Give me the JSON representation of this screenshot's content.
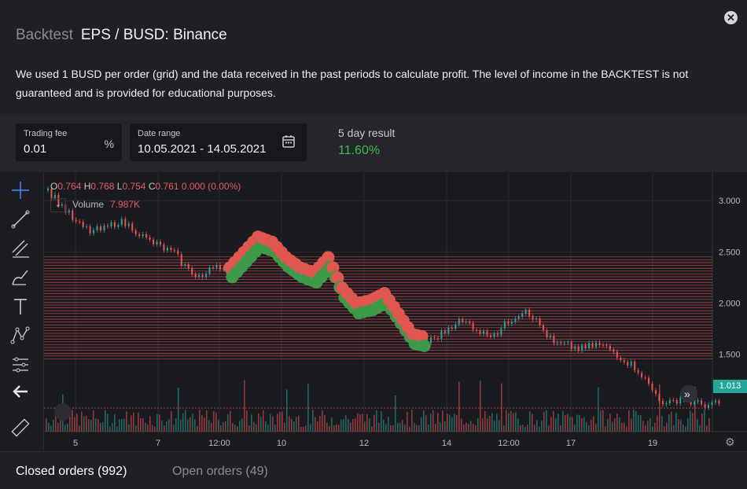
{
  "header": {
    "prefix": "Backtest",
    "title": "EPS / BUSD: Binance",
    "description": "We used 1 BUSD per order (grid) and the data received in the past periods to calculate profit. The level of income in the BACKTEST is not guaranteed and is provided for educational purposes.",
    "close_icon": "close-icon"
  },
  "settings": {
    "trading_fee": {
      "label": "Trading fee",
      "value": "0.01",
      "unit": "%"
    },
    "date_range": {
      "label": "Date range",
      "value": "10.05.2021 - 14.05.2021",
      "icon": "calendar-icon"
    },
    "result": {
      "label": "5 day result",
      "value": "11.60%"
    }
  },
  "chart": {
    "ohlc": {
      "o_key": "O",
      "o": "0.764",
      "h_key": "H",
      "h": "0.768",
      "l_key": "L",
      "l": "0.754",
      "c_key": "C",
      "c": "0.761",
      "change": "0.000 (0.00%)"
    },
    "volume_label": "Volume",
    "volume_value": "7.987K",
    "last_price": "1.013",
    "colors": {
      "up": "#26a69a",
      "down": "#ef5350",
      "buy": "#3d9a4b",
      "sell": "#e0574f"
    }
  },
  "chart_data": {
    "type": "line",
    "x_ticks": [
      "5",
      "7",
      "12:00",
      "10",
      "12",
      "14",
      "12:00",
      "17",
      "19"
    ],
    "y_ticks": [
      "3.000",
      "2.500",
      "2.000",
      "1.500"
    ],
    "ylim": [
      0.9,
      3.2
    ],
    "grid": true,
    "price_points": [
      3.1,
      2.95,
      2.78,
      2.7,
      2.72,
      2.8,
      2.74,
      2.62,
      2.55,
      2.48,
      2.32,
      2.25,
      2.38,
      2.3,
      2.45,
      2.6,
      2.55,
      2.4,
      2.3,
      2.25,
      2.4,
      2.1,
      1.95,
      1.98,
      2.05,
      1.85,
      1.65,
      1.62,
      1.7,
      1.82,
      1.8,
      1.7,
      1.72,
      1.85,
      1.95,
      1.78,
      1.6,
      1.58,
      1.55,
      1.6,
      1.55,
      1.45,
      1.35,
      1.15,
      1.0,
      1.08,
      1.02,
      1.01
    ],
    "grid_band": [
      1.45,
      2.45
    ]
  },
  "toolbar": {
    "tools": [
      "crosshair-icon",
      "trend-line-icon",
      "fib-tools-icon",
      "brush-icon",
      "text-icon",
      "pattern-icon",
      "measure-icon",
      "back-arrow-icon",
      "ruler-icon"
    ]
  },
  "tabs": {
    "closed": "Closed orders (992)",
    "open": "Open orders (49)"
  }
}
